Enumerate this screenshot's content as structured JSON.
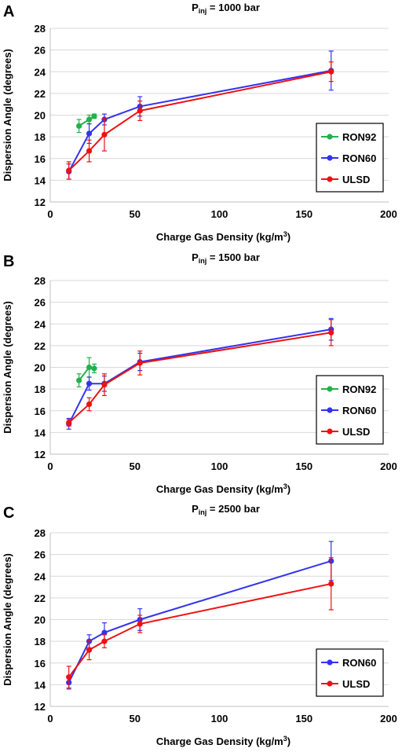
{
  "chart_data": [
    {
      "panel": "A",
      "type": "line",
      "title_main": "P",
      "title_sub": "inj",
      "title_rest": " = 1000 bar",
      "xlabel": "Charge Gas Density (kg/m",
      "xlabel_sup": "3",
      "xlabel_end": ")",
      "ylabel": "Dispersion Angle (degrees)",
      "xlim": [
        0,
        200
      ],
      "ylim": [
        12,
        28
      ],
      "xticks": [
        0,
        50,
        100,
        150,
        200
      ],
      "yticks": [
        12,
        14,
        16,
        18,
        20,
        22,
        24,
        26,
        28
      ],
      "grid": "horizontal",
      "legend_position": "right",
      "series": [
        {
          "name": "RON92",
          "color": "#22b14c",
          "x": [
            17,
            23,
            26
          ],
          "y": [
            19.0,
            19.6,
            19.9
          ],
          "err": [
            0.6,
            0.4,
            0.2
          ]
        },
        {
          "name": "RON60",
          "color": "#3333ee",
          "x": [
            11,
            23,
            32,
            53,
            166
          ],
          "y": [
            14.8,
            18.3,
            19.6,
            20.8,
            24.1
          ],
          "err": [
            0.7,
            0.9,
            0.5,
            0.9,
            1.8
          ]
        },
        {
          "name": "ULSD",
          "color": "#ee1111",
          "x": [
            11,
            23,
            32,
            53,
            166
          ],
          "y": [
            14.9,
            16.7,
            18.2,
            20.4,
            24.0
          ],
          "err": [
            0.8,
            1.0,
            1.5,
            0.9,
            0.9
          ]
        }
      ]
    },
    {
      "panel": "B",
      "type": "line",
      "title_main": "P",
      "title_sub": "inj",
      "title_rest": " = 1500 bar",
      "xlabel": "Charge Gas Density (kg/m",
      "xlabel_sup": "3",
      "xlabel_end": ")",
      "ylabel": "Dispersion Angle (degrees)",
      "xlim": [
        0,
        200
      ],
      "ylim": [
        12,
        28
      ],
      "xticks": [
        0,
        50,
        100,
        150,
        200
      ],
      "yticks": [
        12,
        14,
        16,
        18,
        20,
        22,
        24,
        26,
        28
      ],
      "grid": "horizontal",
      "legend_position": "right",
      "series": [
        {
          "name": "RON92",
          "color": "#22b14c",
          "x": [
            17,
            23,
            26
          ],
          "y": [
            18.8,
            20.0,
            19.9
          ],
          "err": [
            0.6,
            0.9,
            0.4
          ]
        },
        {
          "name": "RON60",
          "color": "#3333ee",
          "x": [
            11,
            23,
            32,
            53,
            166
          ],
          "y": [
            14.8,
            18.5,
            18.5,
            20.5,
            23.5
          ],
          "err": [
            0.5,
            0.6,
            0.7,
            0.8,
            1.0
          ]
        },
        {
          "name": "ULSD",
          "color": "#ee1111",
          "x": [
            11,
            23,
            32,
            53,
            166
          ],
          "y": [
            14.9,
            16.6,
            18.4,
            20.4,
            23.2
          ],
          "err": [
            0.3,
            0.6,
            1.0,
            1.1,
            1.2
          ]
        }
      ]
    },
    {
      "panel": "C",
      "type": "line",
      "title_main": "P",
      "title_sub": "inj",
      "title_rest": " = 2500 bar",
      "xlabel": "Charge Gas Density (kg/m",
      "xlabel_sup": "3",
      "xlabel_end": ")",
      "ylabel": "Dispersion Angle (degrees)",
      "xlim": [
        0,
        200
      ],
      "ylim": [
        12,
        28
      ],
      "xticks": [
        0,
        50,
        100,
        150,
        200
      ],
      "yticks": [
        12,
        14,
        16,
        18,
        20,
        22,
        24,
        26,
        28
      ],
      "grid": "horizontal",
      "legend_position": "bottom-right",
      "series": [
        {
          "name": "RON60",
          "color": "#3333ee",
          "x": [
            11,
            23,
            32,
            53,
            166
          ],
          "y": [
            14.2,
            18.0,
            18.8,
            20.0,
            25.4
          ],
          "err": [
            0.6,
            0.6,
            0.9,
            1.0,
            1.8
          ]
        },
        {
          "name": "ULSD",
          "color": "#ee1111",
          "x": [
            11,
            23,
            32,
            53,
            166
          ],
          "y": [
            14.7,
            17.2,
            18.0,
            19.6,
            23.3
          ],
          "err": [
            1.0,
            0.9,
            0.6,
            0.8,
            2.4
          ]
        }
      ]
    }
  ]
}
